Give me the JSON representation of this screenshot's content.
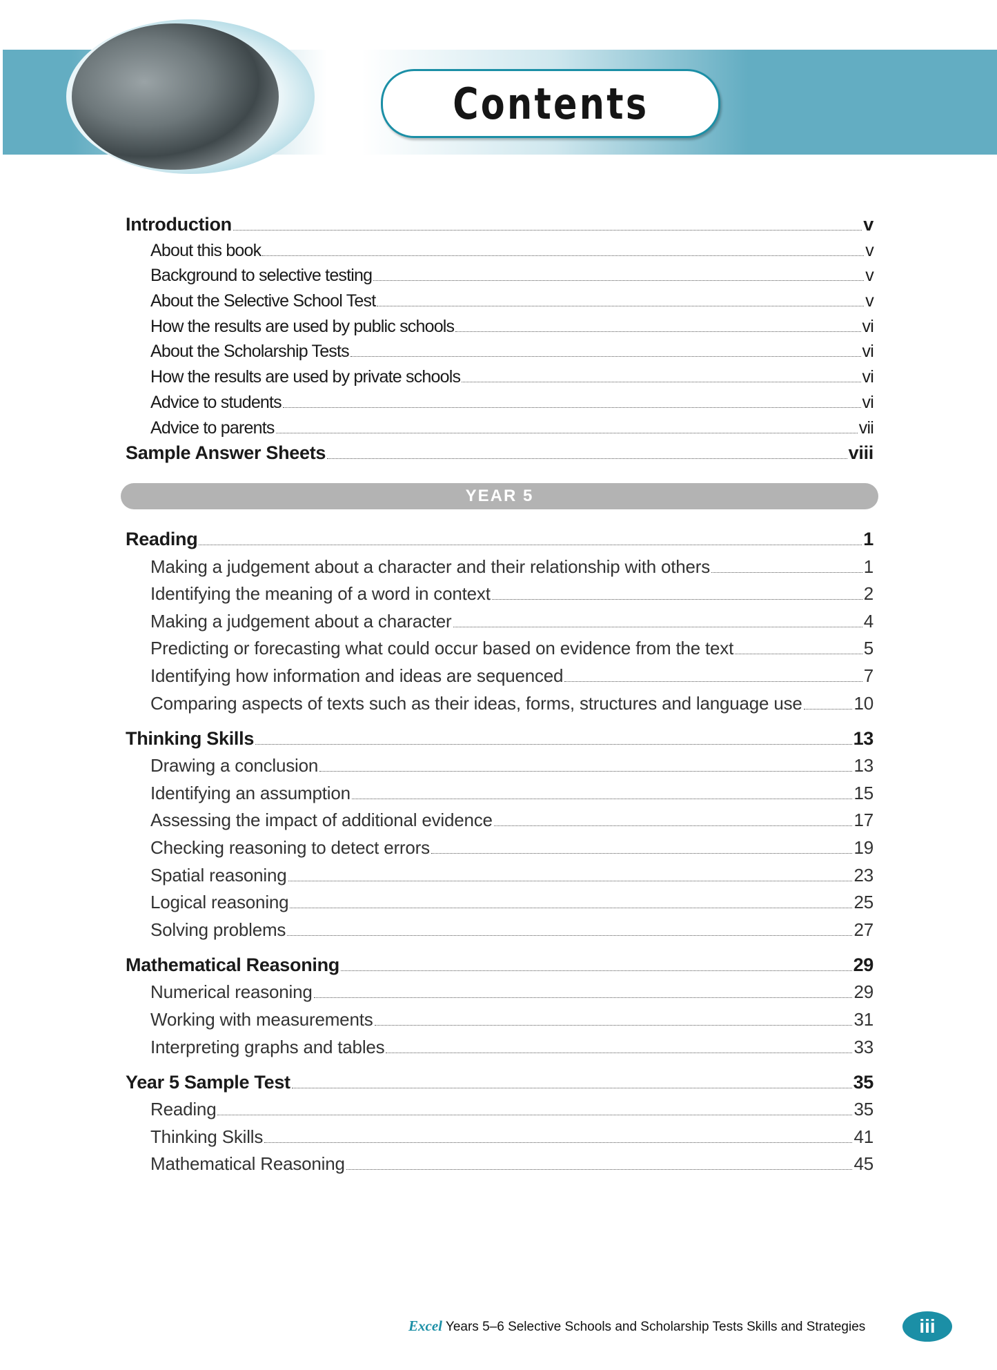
{
  "header": {
    "title": "Contents"
  },
  "intro_section": [
    {
      "label": "Introduction",
      "page": "v",
      "level": 1
    },
    {
      "label": "About this book",
      "page": "v",
      "level": 2
    },
    {
      "label": "Background to selective testing",
      "page": "v",
      "level": 2
    },
    {
      "label": "About the Selective School Test",
      "page": "v",
      "level": 2
    },
    {
      "label": "How the results are used by public schools",
      "page": "vi",
      "level": 2
    },
    {
      "label": "About the Scholarship Tests",
      "page": "vi",
      "level": 2
    },
    {
      "label": "How the results are used by private schools",
      "page": "vi",
      "level": 2
    },
    {
      "label": "Advice to students",
      "page": "vi",
      "level": 2
    },
    {
      "label": "Advice to parents",
      "page": "vii",
      "level": 2
    },
    {
      "label": "Sample Answer Sheets",
      "page": "viii",
      "level": 1
    }
  ],
  "year_bar": "YEAR 5",
  "year5_sections": [
    {
      "label": "Reading",
      "page": "1",
      "items": [
        {
          "label": "Making a judgement about a character and their relationship with others",
          "page": "1"
        },
        {
          "label": "Identifying the meaning of a word in context",
          "page": "2"
        },
        {
          "label": "Making a judgement about a character",
          "page": "4"
        },
        {
          "label": "Predicting or forecasting what could occur based on evidence from the text",
          "page": "5"
        },
        {
          "label": "Identifying how information and ideas are sequenced",
          "page": "7"
        },
        {
          "label": "Comparing aspects of texts such as their ideas, forms, structures and language use",
          "page": "10"
        }
      ]
    },
    {
      "label": "Thinking Skills",
      "page": "13",
      "items": [
        {
          "label": "Drawing a conclusion",
          "page": "13"
        },
        {
          "label": "Identifying an assumption",
          "page": "15"
        },
        {
          "label": "Assessing the impact of additional evidence",
          "page": "17"
        },
        {
          "label": "Checking reasoning to detect errors",
          "page": "19"
        },
        {
          "label": "Spatial reasoning",
          "page": "23"
        },
        {
          "label": "Logical reasoning",
          "page": "25"
        },
        {
          "label": "Solving problems",
          "page": "27"
        }
      ]
    },
    {
      "label": "Mathematical Reasoning",
      "page": "29",
      "items": [
        {
          "label": "Numerical reasoning",
          "page": "29"
        },
        {
          "label": "Working with measurements",
          "page": "31"
        },
        {
          "label": "Interpreting graphs and tables",
          "page": "33"
        }
      ]
    },
    {
      "label": "Year 5 Sample Test",
      "page": "35",
      "items": [
        {
          "label": "Reading",
          "page": "35"
        },
        {
          "label": "Thinking Skills",
          "page": "41"
        },
        {
          "label": "Mathematical Reasoning",
          "page": "45"
        }
      ]
    }
  ],
  "footer": {
    "brand": "Excel",
    "text": "Years 5–6 Selective Schools and Scholarship Tests Skills and Strategies",
    "page_number": "iii"
  },
  "colors": {
    "accent": "#1b8fa6",
    "band": "#63adc2",
    "year_bar": "#b3b3b3"
  }
}
